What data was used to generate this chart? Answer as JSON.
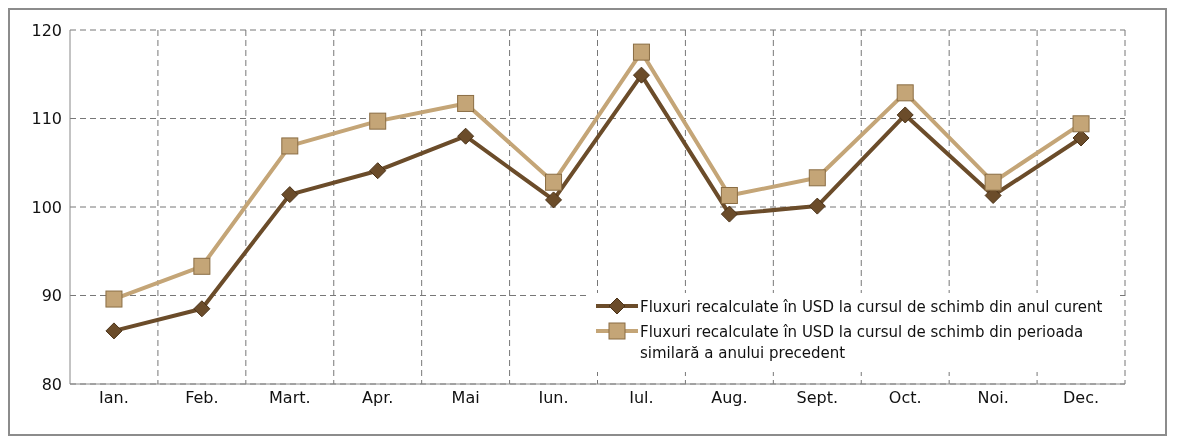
{
  "chart_data": {
    "type": "line",
    "categories": [
      "Ian.",
      "Feb.",
      "Mart.",
      "Apr.",
      "Mai",
      "Iun.",
      "Iul.",
      "Aug.",
      "Sept.",
      "Oct.",
      "Noi.",
      "Dec."
    ],
    "series": [
      {
        "name": "Fluxuri recalculate în USD la cursul de schimb din anul curent",
        "color": "#6b4c2a",
        "marker": "diamond",
        "values": [
          86.0,
          88.5,
          101.4,
          104.1,
          108.0,
          100.8,
          114.9,
          99.2,
          100.1,
          110.4,
          101.3,
          107.8
        ]
      },
      {
        "name": "Fluxuri recalculate în USD la cursul de schimb din perioada similară a anului precedent",
        "color": "#c4a577",
        "marker": "square",
        "values": [
          89.6,
          93.3,
          106.9,
          109.7,
          111.7,
          102.8,
          117.5,
          101.3,
          103.3,
          112.9,
          102.8,
          109.4
        ]
      }
    ],
    "ylim": [
      80,
      120
    ],
    "yticks": [
      80,
      90,
      100,
      110,
      120
    ],
    "grid": true,
    "legend": "bottom right",
    "line_style": "solid"
  }
}
